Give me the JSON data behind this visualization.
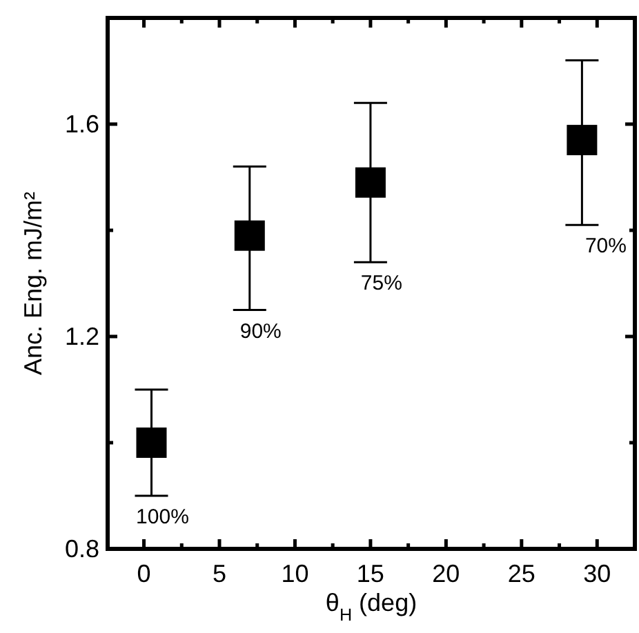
{
  "chart_data": {
    "type": "scatter",
    "xlabel": "θ$_{H}$ (deg)",
    "ylabel": "Anc. Eng. mJ/m²",
    "x": [
      0.5,
      7,
      15,
      29
    ],
    "series": [
      {
        "color": "#000000",
        "values": [
          1.0,
          1.39,
          1.49,
          1.57
        ],
        "errors": [
          [
            0.9,
            1.1
          ],
          [
            1.25,
            1.52
          ],
          [
            1.34,
            1.64
          ],
          [
            1.41,
            1.72
          ]
        ]
      }
    ],
    "marker": "square",
    "xlim": [
      -2.4,
      32.5
    ],
    "xticks": [
      0,
      {
        "value": 2.5,
        "label": null
      },
      5,
      {
        "value": 7.5,
        "label": null
      },
      10,
      {
        "value": 12.5,
        "label": null
      },
      15,
      {
        "value": 17.5,
        "label": null
      },
      20,
      {
        "value": 22.5,
        "label": null
      },
      25,
      {
        "value": 27.5,
        "label": null
      },
      30
    ],
    "ylim": [
      0.8,
      1.8
    ],
    "yticks": [
      0.8,
      {
        "value": 1.0,
        "label": null
      },
      1.2,
      {
        "value": 1.4,
        "label": null
      },
      1.6
    ],
    "grid": false,
    "annotations": [
      "100%",
      "90%",
      "75%",
      "70%"
    ]
  }
}
